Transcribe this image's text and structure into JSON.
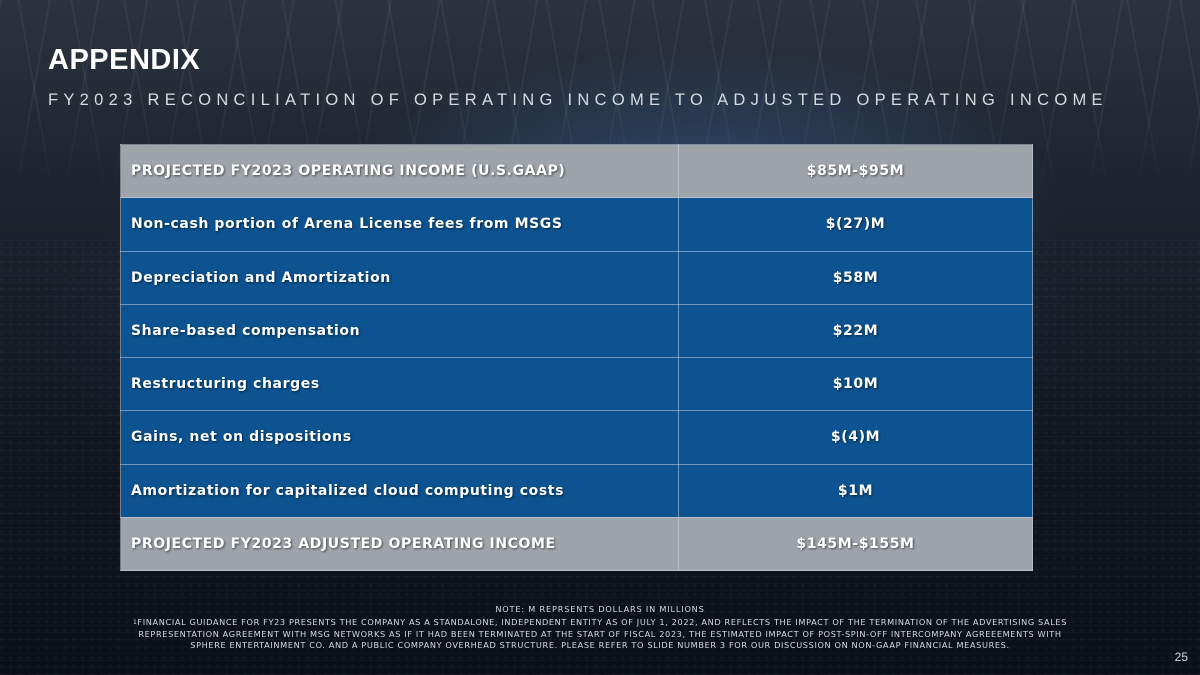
{
  "slide": {
    "title": "APPENDIX",
    "subtitle": "FY2023 RECONCILIATION OF OPERATING INCOME TO ADJUSTED OPERATING INCOME",
    "page_number": "25"
  },
  "table": {
    "rows": [
      {
        "label": "PROJECTED FY2023 OPERATING INCOME (U.S.GAAP)",
        "value": "$85M-$95M"
      },
      {
        "label": "Non-cash portion of Arena License fees from MSGS",
        "value": "$(27)M"
      },
      {
        "label": "Depreciation and Amortization",
        "value": "$58M"
      },
      {
        "label": "Share-based compensation",
        "value": "$22M"
      },
      {
        "label": "Restructuring charges",
        "value": "$10M"
      },
      {
        "label": "Gains, net on dispositions",
        "value": "$(4)M"
      },
      {
        "label": "Amortization for capitalized cloud computing costs",
        "value": "$1M"
      },
      {
        "label": "PROJECTED FY2023 ADJUSTED OPERATING INCOME",
        "value": "$145M-$155M"
      }
    ]
  },
  "footer": {
    "note": "NOTE: M REPRSENTS DOLLARS IN MILLIONS",
    "footnote_marker": "1",
    "footnote_line1": "FINANCIAL GUIDANCE FOR FY23 PRESENTS THE COMPANY AS A STANDALONE, INDEPENDENT ENTITY AS OF JULY 1, 2022, AND REFLECTS THE IMPACT OF THE TERMINATION OF THE ADVERTISING SALES",
    "footnote_line2": "REPRESENTATION AGREEMENT WITH MSG NETWORKS AS IF IT HAD BEEN TERMINATED AT THE START OF FISCAL 2023, THE ESTIMATED IMPACT OF POST-SPIN-OFF INTERCOMPANY AGREEEMENTS WITH",
    "footnote_line3": "SPHERE ENTERTAINMENT CO. AND A PUBLIC COMPANY OVERHEAD STRUCTURE. PLEASE REFER TO SLIDE NUMBER 3 FOR OUR DISCUSSION ON NON-GAAP FINANCIAL MEASURES."
  }
}
